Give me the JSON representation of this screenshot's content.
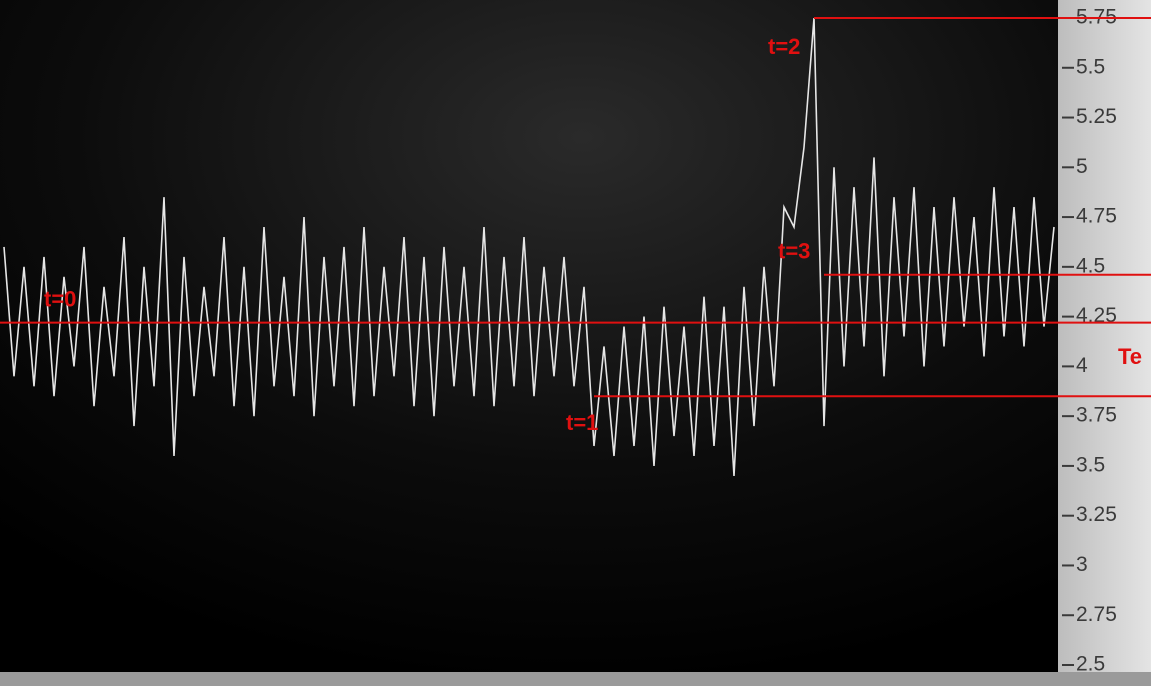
{
  "chart_data": {
    "type": "line",
    "series": [
      {
        "color": "#e6e6e6",
        "values": [
          4.6,
          3.95,
          4.5,
          3.9,
          4.55,
          3.85,
          4.45,
          4.0,
          4.6,
          3.8,
          4.4,
          3.95,
          4.65,
          3.7,
          4.5,
          3.9,
          4.85,
          3.55,
          4.55,
          3.85,
          4.4,
          3.95,
          4.65,
          3.8,
          4.5,
          3.75,
          4.7,
          3.9,
          4.45,
          3.85,
          4.75,
          3.75,
          4.55,
          3.9,
          4.6,
          3.8,
          4.7,
          3.85,
          4.5,
          3.95,
          4.65,
          3.8,
          4.55,
          3.75,
          4.6,
          3.9,
          4.5,
          3.85,
          4.7,
          3.8,
          4.55,
          3.9,
          4.65,
          3.85,
          4.5,
          3.95,
          4.55,
          3.9,
          4.4,
          3.6,
          4.1,
          3.55,
          4.2,
          3.6,
          4.25,
          3.5,
          4.3,
          3.65,
          4.2,
          3.55,
          4.35,
          3.6,
          4.3,
          3.45,
          4.4,
          3.7,
          4.5,
          3.9,
          4.8,
          4.7,
          5.1,
          5.75,
          3.7,
          5.0,
          4.0,
          4.9,
          4.1,
          5.05,
          3.95,
          4.85,
          4.15,
          4.9,
          4.0,
          4.8,
          4.1,
          4.85,
          4.2,
          4.75,
          4.05,
          4.9,
          4.15,
          4.8,
          4.1,
          4.85,
          4.2,
          4.7
        ]
      }
    ],
    "xlim": [
      0,
      105
    ],
    "ylim": [
      2.5,
      5.75
    ],
    "yticks": [
      2.5,
      2.75,
      3,
      3.25,
      3.5,
      3.75,
      4,
      4.25,
      4.5,
      4.75,
      5,
      5.25,
      5.5,
      5.75
    ],
    "reference_lines": [
      {
        "label": "t=0",
        "value": 4.22,
        "x_start": 0,
        "color": "#e01010"
      },
      {
        "label": "t=1",
        "value": 3.85,
        "x_start": 59,
        "color": "#e01010"
      },
      {
        "label": "t=2",
        "value": 5.75,
        "x_start": 81,
        "color": "#e01010"
      },
      {
        "label": "t=3",
        "value": 4.46,
        "x_start": 82,
        "color": "#e01010"
      }
    ],
    "axis_label": "Te"
  }
}
